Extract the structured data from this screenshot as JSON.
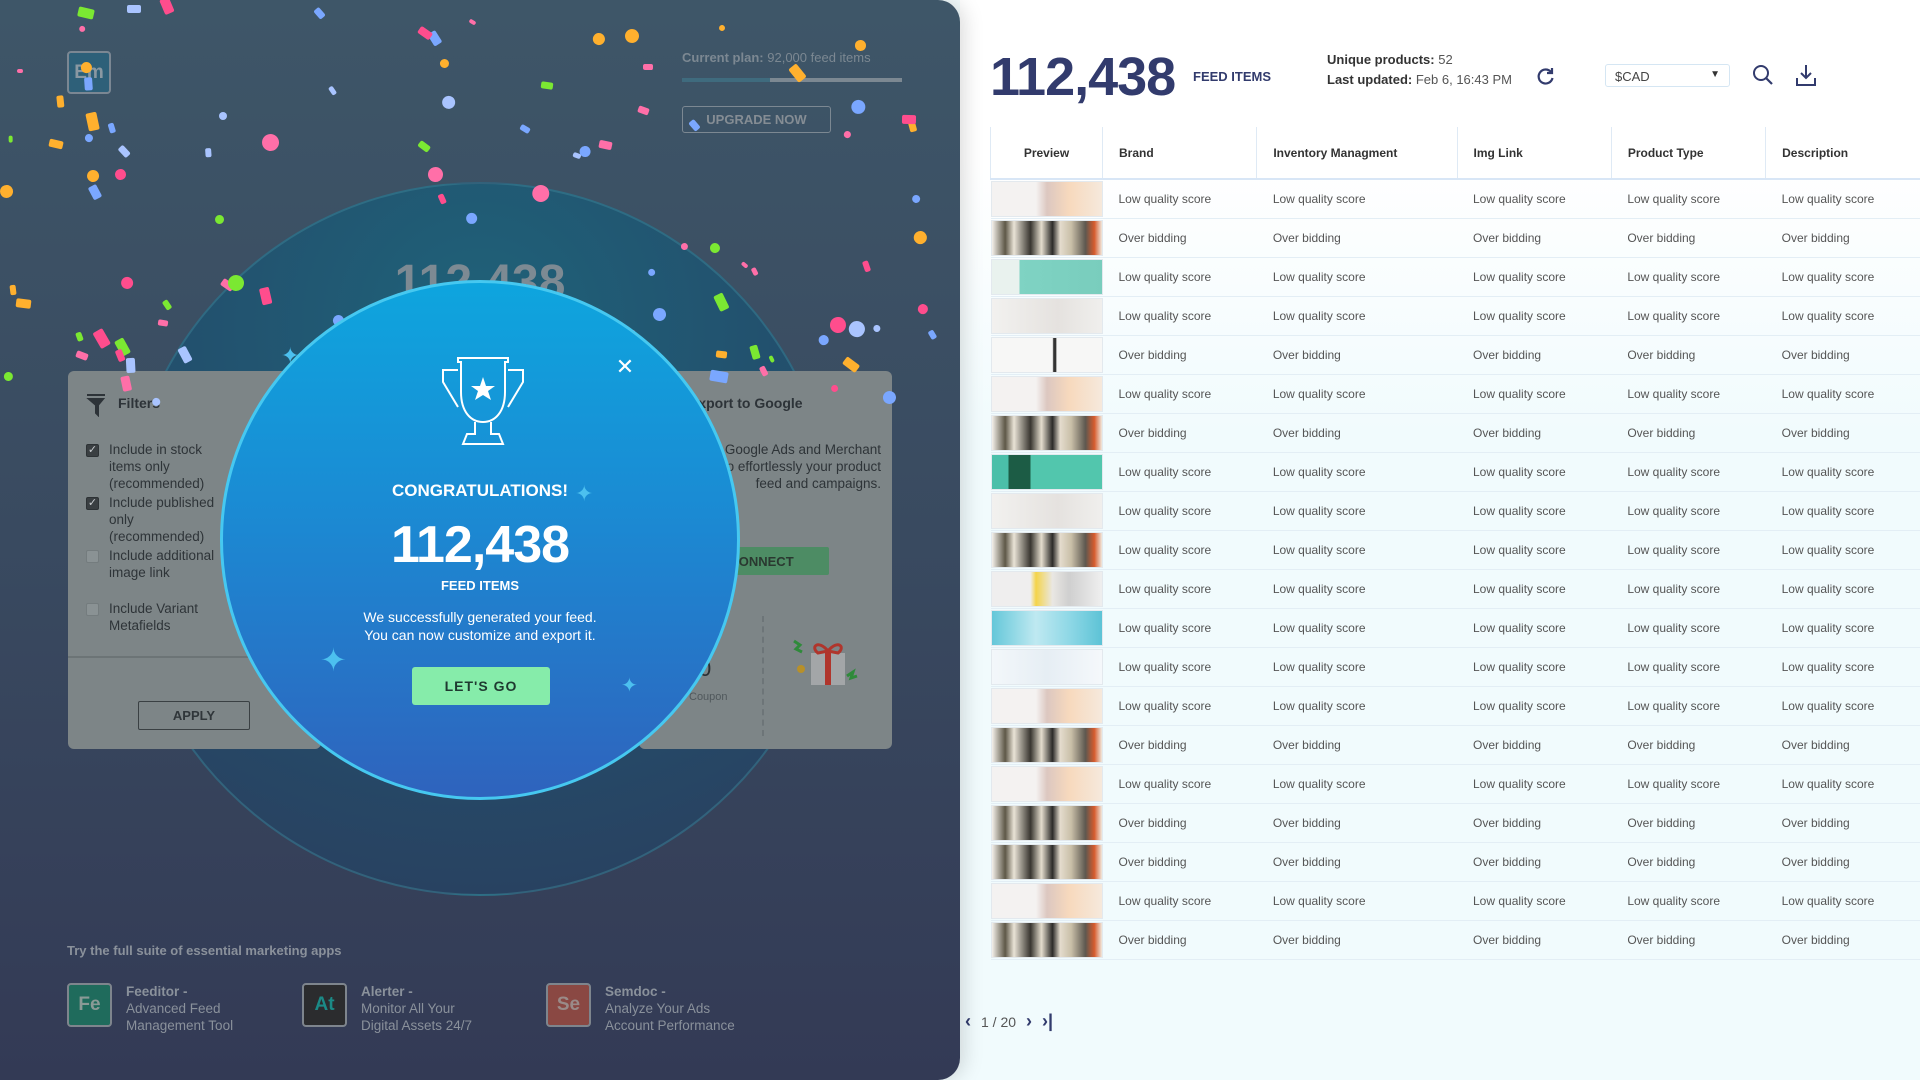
{
  "left": {
    "logo": "Em",
    "plan": {
      "label": "Current plan:",
      "value": "92,000 feed items",
      "progress_percent": 40
    },
    "upgrade_label": "UPGRADE NOW",
    "background_count": "112,438",
    "filters": {
      "title": "Filters",
      "options": [
        {
          "label": "Include in stock items only (recommended)",
          "checked": true
        },
        {
          "label": "Include published only (recommended)",
          "checked": true
        },
        {
          "label": "Include additional image link",
          "checked": false
        },
        {
          "label": "Include Variant Metafields",
          "checked": false
        }
      ],
      "apply_label": "APPLY"
    },
    "export": {
      "title": "Export to Google",
      "text": "your Google Ads and Merchant Center to effortlessly your product feed and campaigns.",
      "connect_label": "CONNECT",
      "coupon_value": "0",
      "coupon_label": "Coupon"
    },
    "suite": {
      "title": "Try the full suite of essential marketing apps",
      "apps": [
        {
          "abbr": "Fe",
          "name": "Feeditor -",
          "desc1": "Advanced Feed",
          "desc2": "Management Tool",
          "color": "#1f6b5c",
          "text_color": "#8a9a96"
        },
        {
          "abbr": "At",
          "name": "Alerter -",
          "desc1": "Monitor All Your",
          "desc2": "Digital Assets 24/7",
          "color": "#2b2c2e",
          "text_color": "#1b8a86"
        },
        {
          "abbr": "Se",
          "name": "Semdoc -",
          "desc1": "Analyze Your Ads",
          "desc2": "Account Performance",
          "color": "#8a4843",
          "text_color": "#9a8a88"
        }
      ]
    }
  },
  "modal": {
    "title": "CONGRATULATIONS!",
    "count": "112,438",
    "count_label": "FEED ITEMS",
    "line1": "We successfully generated your feed.",
    "line2": "You can now customize and export it.",
    "button": "LET'S GO"
  },
  "header": {
    "count": "112,438",
    "count_label": "FEED ITEMS",
    "unique_label": "Unique products:",
    "unique_value": "52",
    "updated_label": "Last updated:",
    "updated_value": "Feb 6, 16:43 PM",
    "currency": "$CAD"
  },
  "table": {
    "columns": [
      "Preview",
      "Brand",
      "Inventory Managment",
      "Img Link",
      "Product Type",
      "Description"
    ],
    "rows": [
      {
        "thumb": "peach",
        "value": "Low quality score"
      },
      {
        "thumb": "jars",
        "value": "Over bidding"
      },
      {
        "thumb": "teal",
        "value": "Low quality score"
      },
      {
        "thumb": "grey",
        "value": "Low quality score"
      },
      {
        "thumb": "bottle",
        "value": "Over bidding"
      },
      {
        "thumb": "peach",
        "value": "Low quality score"
      },
      {
        "thumb": "jars",
        "value": "Over bidding"
      },
      {
        "thumb": "green",
        "value": "Low quality score"
      },
      {
        "thumb": "grey",
        "value": "Low quality score"
      },
      {
        "thumb": "jars",
        "value": "Low quality score"
      },
      {
        "thumb": "yellow",
        "value": "Low quality score"
      },
      {
        "thumb": "blue",
        "value": "Low quality score"
      },
      {
        "thumb": "white",
        "value": "Low quality score"
      },
      {
        "thumb": "peach",
        "value": "Low quality score"
      },
      {
        "thumb": "jars",
        "value": "Over bidding"
      },
      {
        "thumb": "peach",
        "value": "Low quality score"
      },
      {
        "thumb": "jars",
        "value": "Over bidding"
      },
      {
        "thumb": "jars",
        "value": "Over bidding"
      },
      {
        "thumb": "peach",
        "value": "Low quality score"
      },
      {
        "thumb": "jars",
        "value": "Over bidding"
      }
    ]
  },
  "pagination": {
    "current": "1",
    "total": "20",
    "text": "1 / 20"
  }
}
